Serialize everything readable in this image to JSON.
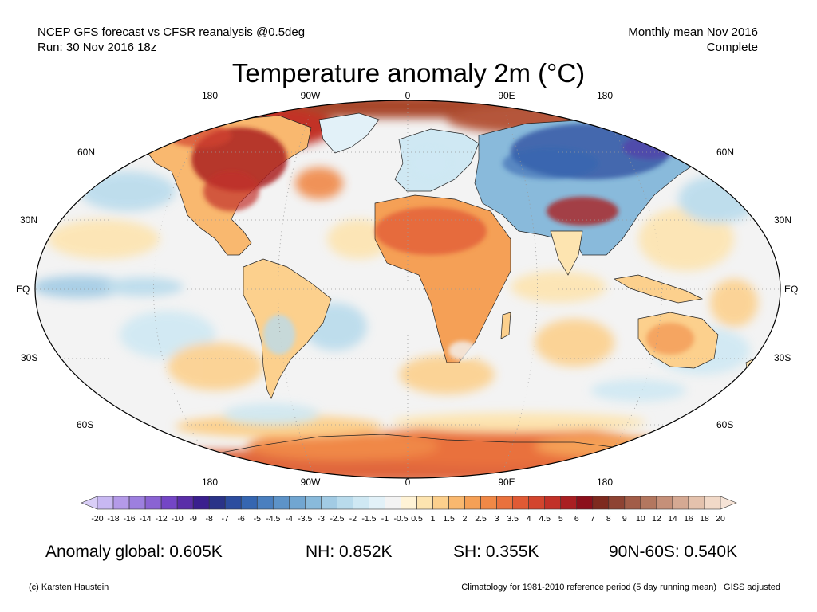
{
  "header": {
    "left_line1": "NCEP GFS forecast vs CFSR reanalysis @0.5deg",
    "left_line2": "Run: 30 Nov 2016 18z",
    "right_line1": "Monthly mean Nov 2016",
    "right_line2": "Complete"
  },
  "title": "Temperature anomaly 2m (°C)",
  "map": {
    "lon_labels": [
      "180",
      "90W",
      "0",
      "90E",
      "180"
    ],
    "lat_labels_left": [
      "60N",
      "30N",
      "EQ",
      "30S",
      "60S"
    ],
    "lat_labels_right": [
      "60N",
      "30N",
      "EQ",
      "30S",
      "60S"
    ],
    "colors": {
      "ocean": "#f3f3f3",
      "border": "#000000"
    }
  },
  "colorbar": {
    "ticks": [
      "-20",
      "-18",
      "-16",
      "-14",
      "-12",
      "-10",
      "-9",
      "-8",
      "-7",
      "-6",
      "-5",
      "-4.5",
      "-4",
      "-3.5",
      "-3",
      "-2.5",
      "-2",
      "-1.5",
      "-1",
      "-0.5",
      "0.5",
      "1",
      "1.5",
      "2",
      "2.5",
      "3",
      "3.5",
      "4",
      "4.5",
      "5",
      "6",
      "7",
      "8",
      "9",
      "10",
      "12",
      "14",
      "16",
      "18",
      "20"
    ],
    "colors": [
      "#c8b8f2",
      "#b49ae8",
      "#9d7fdf",
      "#8a63d3",
      "#7446c6",
      "#5a2ea8",
      "#3a1f8e",
      "#2a3388",
      "#2c4d9f",
      "#3566b1",
      "#4a7fbf",
      "#5d93c8",
      "#71a6d1",
      "#89badb",
      "#a2cbe4",
      "#b9dbec",
      "#cfe8f3",
      "#e2f1f8",
      "#f3f3f3",
      "#fff3d6",
      "#fde4b0",
      "#fcd08d",
      "#f9b86f",
      "#f5a056",
      "#f08846",
      "#e9713d",
      "#e05a35",
      "#d3452e",
      "#c23128",
      "#aa1f22",
      "#8c101b",
      "#7e2a1f",
      "#8e4333",
      "#a25d48",
      "#b3775f",
      "#c59079",
      "#d5a993",
      "#e4c2ad",
      "#f1d9c8"
    ],
    "under_color": "#d9cef7",
    "over_color": "#f6e3d6"
  },
  "stats": {
    "global": "Anomaly global: 0.605K",
    "nh": "NH: 0.852K",
    "sh": "SH: 0.355K",
    "arctic": "90N-60S: 0.540K"
  },
  "footer": {
    "credit": "(c) Karsten Haustein",
    "climatology": "Climatology for 1981-2010 reference period (5 day running mean) | GISS adjusted"
  }
}
